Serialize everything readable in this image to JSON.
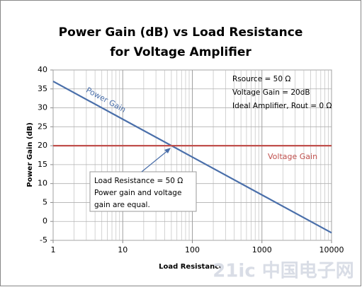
{
  "chart_data": {
    "type": "line",
    "title": [
      "Power Gain (dB) vs Load Resistance",
      "for Voltage Amplifier"
    ],
    "xlabel": "Load Resistance",
    "ylabel": "Power Gain (dB)",
    "x": [
      1,
      10,
      100,
      1000,
      10000
    ],
    "series": [
      {
        "name": "Power Gain",
        "color": "#4a6faa",
        "values": [
          37,
          27,
          17,
          7,
          -3
        ]
      },
      {
        "name": "Voltage Gain",
        "color": "#c0504d",
        "values": [
          20,
          20,
          20,
          20,
          20
        ]
      }
    ],
    "xlog": true,
    "xlim": [
      1,
      10000
    ],
    "xticks": [
      1,
      10,
      100,
      1000,
      10000
    ],
    "ylim": [
      -5,
      40
    ],
    "yticks": [
      -5,
      0,
      5,
      10,
      15,
      20,
      25,
      30,
      35,
      40
    ],
    "grid": true,
    "annotations": [
      "Rsource = 50 Ω",
      "Voltage Gain = 20dB",
      "Ideal Amplifier, Rout = 0 Ω"
    ],
    "callout": [
      "Load Resistance = 50 Ω",
      "Power gain and voltage",
      "gain are equal."
    ],
    "watermark": "21ic 中国电子网"
  }
}
